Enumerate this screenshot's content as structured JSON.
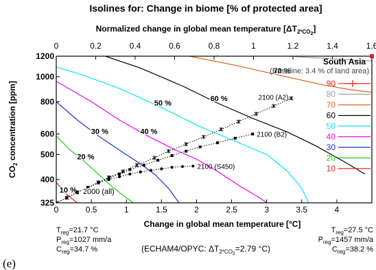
{
  "chart_data": {
    "type": "line",
    "title": "Isolines for: Change in biome [% of protected area]",
    "top_axis_label": "Normalized change in global mean temperature [ΔT",
    "top_axis_sub": "2*CO",
    "top_axis_sub2": "2",
    "top_axis_close": "]",
    "xlabel": "Change in global mean temperature [°C]",
    "ylabel_main": "CO",
    "ylabel_sub": "2",
    "ylabel_rest": " concentration [ppm]",
    "xlim": [
      0,
      4.5
    ],
    "ylim": [
      325,
      1200
    ],
    "y_scale": "log",
    "top_xlim": [
      0,
      1.6
    ],
    "x_ticks": [
      "0",
      "0.5",
      "1",
      "1.5",
      "2",
      "2.5",
      "3",
      "3.5",
      "4"
    ],
    "top_ticks": [
      "0",
      "0.2",
      "0.4",
      "0.6",
      "0.8",
      "1",
      "1.2",
      "1.4",
      "1.6"
    ],
    "y_ticks": [
      "325",
      "400",
      "500",
      "600",
      "800",
      "1000",
      "1200"
    ],
    "region": "South Asia",
    "baseline": "(Baseline: 3.4 % of land area)",
    "colors": {
      "90": "#e82020",
      "80": "#a0a0a0",
      "70": "#e06010",
      "60": "#000000",
      "50": "#00e8f0",
      "40": "#f000f0",
      "30": "#1830c8",
      "20": "#20c820",
      "10": "#e82020"
    },
    "isolines": [
      {
        "level": "10",
        "label": "10 %",
        "points": [
          [
            0.0,
            390
          ],
          [
            0.15,
            350
          ],
          [
            0.3,
            325
          ]
        ]
      },
      {
        "level": "20",
        "label": "20 %",
        "points": [
          [
            0.0,
            590
          ],
          [
            0.2,
            520
          ],
          [
            0.4,
            470
          ],
          [
            0.6,
            420
          ],
          [
            0.8,
            375
          ],
          [
            1.0,
            340
          ],
          [
            1.1,
            325
          ]
        ]
      },
      {
        "level": "30",
        "label": "30 %",
        "points": [
          [
            0.0,
            800
          ],
          [
            0.3,
            680
          ],
          [
            0.6,
            590
          ],
          [
            0.9,
            520
          ],
          [
            1.2,
            460
          ],
          [
            1.4,
            420
          ],
          [
            1.6,
            370
          ],
          [
            1.75,
            325
          ]
        ]
      },
      {
        "level": "40",
        "label": "40 %",
        "points": [
          [
            0.0,
            960
          ],
          [
            0.5,
            800
          ],
          [
            0.9,
            680
          ],
          [
            1.3,
            590
          ],
          [
            1.7,
            520
          ],
          [
            2.0,
            480
          ],
          [
            2.3,
            430
          ],
          [
            2.6,
            380
          ],
          [
            2.9,
            340
          ],
          [
            3.0,
            325
          ]
        ]
      },
      {
        "level": "50",
        "label": "50 %",
        "points": [
          [
            0.0,
            1090
          ],
          [
            0.4,
            1010
          ],
          [
            0.9,
            900
          ],
          [
            1.5,
            760
          ],
          [
            2.0,
            650
          ],
          [
            2.5,
            570
          ],
          [
            3.0,
            500
          ],
          [
            3.3,
            430
          ],
          [
            3.5,
            370
          ],
          [
            3.6,
            325
          ]
        ]
      },
      {
        "level": "60",
        "label": "60 %",
        "points": [
          [
            0.7,
            1200
          ],
          [
            1.2,
            1080
          ],
          [
            1.8,
            920
          ],
          [
            2.3,
            790
          ],
          [
            2.8,
            690
          ],
          [
            3.3,
            610
          ],
          [
            3.7,
            540
          ],
          [
            4.1,
            470
          ],
          [
            4.4,
            420
          ]
        ]
      },
      {
        "level": "70",
        "label": "70 %",
        "points": [
          [
            1.9,
            1200
          ],
          [
            2.6,
            1100
          ],
          [
            3.2,
            1010
          ],
          [
            3.8,
            930
          ],
          [
            4.2,
            890
          ],
          [
            4.5,
            870
          ]
        ]
      },
      {
        "level": "80",
        "label": "",
        "points": [
          [
            3.3,
            1200
          ],
          [
            4.0,
            1170
          ],
          [
            4.5,
            1150
          ]
        ]
      }
    ],
    "scenarios": [
      {
        "name": "2100 (A2)",
        "marker": "asterisk",
        "points": [
          [
            0.0,
            325
          ],
          [
            0.15,
            340
          ],
          [
            0.3,
            357
          ],
          [
            0.45,
            372
          ],
          [
            0.6,
            390
          ],
          [
            0.75,
            408
          ],
          [
            0.95,
            430
          ],
          [
            1.15,
            455
          ],
          [
            1.4,
            485
          ],
          [
            1.6,
            515
          ],
          [
            1.85,
            548
          ],
          [
            2.1,
            585
          ],
          [
            2.35,
            625
          ],
          [
            2.6,
            670
          ],
          [
            2.85,
            718
          ],
          [
            3.1,
            770
          ],
          [
            3.35,
            825
          ]
        ]
      },
      {
        "name": "2100 (B2)",
        "marker": "square",
        "points": [
          [
            0.0,
            325
          ],
          [
            0.15,
            340
          ],
          [
            0.3,
            357
          ],
          [
            0.45,
            372
          ],
          [
            0.6,
            390
          ],
          [
            0.75,
            405
          ],
          [
            0.9,
            420
          ],
          [
            1.05,
            437
          ],
          [
            1.25,
            455
          ],
          [
            1.45,
            475
          ],
          [
            1.65,
            495
          ],
          [
            1.85,
            515
          ],
          [
            2.05,
            535
          ],
          [
            2.3,
            555
          ],
          [
            2.55,
            578
          ],
          [
            2.8,
            600
          ]
        ]
      },
      {
        "name": "2100 (S450)",
        "marker": "circle",
        "points": [
          [
            0.0,
            325
          ],
          [
            0.15,
            340
          ],
          [
            0.3,
            357
          ],
          [
            0.45,
            372
          ],
          [
            0.6,
            388
          ],
          [
            0.75,
            400
          ],
          [
            0.9,
            410
          ],
          [
            1.05,
            420
          ],
          [
            1.2,
            428
          ],
          [
            1.35,
            434
          ],
          [
            1.5,
            440
          ],
          [
            1.65,
            446
          ],
          [
            1.8,
            449
          ],
          [
            1.95,
            451
          ]
        ]
      }
    ],
    "scenario_start_label": "2000 (all)",
    "legend": [
      {
        "level": "90",
        "label": "90"
      },
      {
        "level": "80",
        "label": "80"
      },
      {
        "level": "70",
        "label": "70"
      },
      {
        "level": "60",
        "label": "60"
      },
      {
        "level": "50",
        "label": "50"
      },
      {
        "level": "40",
        "label": "40"
      },
      {
        "level": "30",
        "label": "30"
      },
      {
        "level": "20",
        "label": "20"
      },
      {
        "level": "10",
        "label": "10"
      }
    ],
    "left_info": {
      "t_main": "T",
      "t_sub": "reg",
      "t_val": "=21.7 °C",
      "p_main": "P",
      "p_sub": "reg",
      "p_val": "=1027 mm/a",
      "c_main": "C",
      "c_sub": "reg",
      "c_val": "=34.7 %"
    },
    "right_info": {
      "t_main": "T",
      "t_sub": "reg",
      "t_val": "=27.5 °C",
      "p_main": "P",
      "p_sub": "reg",
      "p_val": "=1457 mm/a",
      "c_main": "C",
      "c_sub": "reg",
      "c_val": "=38.2 %"
    },
    "model_note": {
      "pre": "(ECHAM4/OPYC:  ΔT",
      "sub": "2*CO",
      "sub2": "2",
      "post": "=2.79 °C)"
    },
    "panel_label": "(e)"
  }
}
